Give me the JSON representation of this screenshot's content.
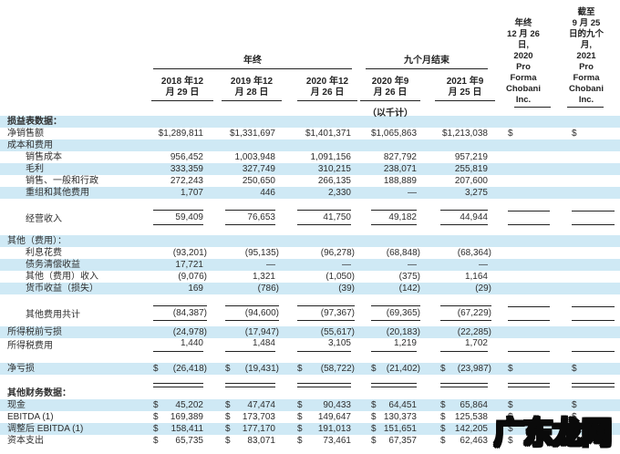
{
  "header": {
    "year_ended_label": "年终",
    "nine_months_label": "九个月结束",
    "thousands_note": "（以千计）",
    "date_columns": [
      "2018 年12\n月 29 日",
      "2019 年12\n月 28 日",
      "2020 年12\n月 26 日",
      "2020 年9\n月 26 日",
      "2021 年9\n月 25 日"
    ],
    "pro_forma_columns": [
      "年终\n12 月 26\n日,\n2020\nPro\nForma\nChobani\nInc.",
      "截至\n9 月 25\n日的九个\n月,\n2021\nPro\nForma\nChobani\nInc."
    ]
  },
  "colors": {
    "stripe": "#cfe9f5",
    "text": "#2e2e2e",
    "rule": "#222222"
  },
  "watermark": "广东龙网",
  "table": {
    "rows": [
      {
        "label": "损益表数据：",
        "bold": true,
        "shaded": true,
        "cells": []
      },
      {
        "label": "净销售额",
        "cells": [
          "$1,289,811",
          "$1,331,697",
          "$1,401,371",
          "$1,065,863",
          "$1,213,038",
          {
            "$": ""
          },
          {
            "$": ""
          }
        ]
      },
      {
        "label": "成本和费用",
        "shaded": true,
        "cells": []
      },
      {
        "label": "销售成本",
        "indent": true,
        "cells": [
          "956,452",
          "1,003,948",
          "1,091,156",
          "827,792",
          "957,219",
          "",
          ""
        ]
      },
      {
        "label": "毛利",
        "indent": true,
        "shaded": true,
        "cells": [
          "333,359",
          "327,749",
          "310,215",
          "238,071",
          "255,819",
          "",
          ""
        ]
      },
      {
        "label": "销售、一般和行政",
        "indent": true,
        "cells": [
          "272,243",
          "250,650",
          "266,135",
          "188,889",
          "207,600",
          "",
          ""
        ]
      },
      {
        "label": "重组和其他费用",
        "indent": true,
        "shaded": true,
        "cells": [
          "1,707",
          "446",
          "2,330",
          "—",
          "3,275",
          "",
          ""
        ]
      },
      {
        "spacer": 12
      },
      {
        "label": "经营收入",
        "indent": true,
        "rule": "overunder",
        "cells": [
          "59,409",
          "76,653",
          "41,750",
          "49,182",
          "44,944",
          "",
          ""
        ]
      },
      {
        "spacer": 11
      },
      {
        "label": "其他（费用）：",
        "shaded": true,
        "cells": []
      },
      {
        "label": "利息花费",
        "indent": true,
        "cells": [
          "(93,201)",
          "(95,135)",
          "(96,278)",
          "(68,848)",
          "(68,364)",
          "",
          ""
        ]
      },
      {
        "label": "债务清偿收益",
        "indent": true,
        "shaded": true,
        "cells": [
          "17,721",
          "—",
          "—",
          "—",
          "—",
          "",
          ""
        ]
      },
      {
        "label": "其他（费用）收入",
        "indent": true,
        "cells": [
          "(9,076)",
          "1,321",
          "(1,050)",
          "(375)",
          "1,164",
          "",
          ""
        ]
      },
      {
        "label": "货币收益（损失）",
        "indent": true,
        "shaded": true,
        "cells": [
          "169",
          "(786)",
          "(39)",
          "(142)",
          "(29)",
          "",
          ""
        ]
      },
      {
        "spacer": 12
      },
      {
        "label": "其他费用共计",
        "indent": true,
        "rule": "overunder",
        "cells": [
          "(84,387)",
          "(94,600)",
          "(97,367)",
          "(69,365)",
          "(67,229)",
          "",
          ""
        ]
      },
      {
        "spacer": 6
      },
      {
        "label": "所得税前亏损",
        "shaded": true,
        "cells": [
          "(24,978)",
          "(17,947)",
          "(55,617)",
          "(20,183)",
          "(22,285)",
          "",
          ""
        ]
      },
      {
        "label": "所得税费用",
        "rule": "under",
        "cells": [
          "1,440",
          "1,484",
          "3,105",
          "1,219",
          "1,702",
          "",
          ""
        ]
      },
      {
        "spacer": 12
      },
      {
        "label": "净亏损",
        "shaded": true,
        "cells": [
          {
            "$": "(26,418)"
          },
          {
            "$": "(19,431)"
          },
          {
            "$": "(58,722)"
          },
          {
            "$": "(21,402)"
          },
          {
            "$": "(23,987)"
          },
          {
            "$": ""
          },
          {
            "$": ""
          }
        ]
      },
      {
        "spacer": 14,
        "rule": "double"
      },
      {
        "label": "其他财务数据：",
        "bold": true,
        "cells": []
      },
      {
        "label": "现金",
        "shaded": true,
        "cells": [
          {
            "$": "45,202"
          },
          {
            "$": "47,474"
          },
          {
            "$": "90,433"
          },
          {
            "$": "64,451"
          },
          {
            "$": "65,864"
          },
          {
            "$": ""
          },
          {
            "$": ""
          }
        ]
      },
      {
        "label": "EBITDA (1)",
        "cells": [
          {
            "$": "169,389"
          },
          {
            "$": "173,703"
          },
          {
            "$": "149,647"
          },
          {
            "$": "130,373"
          },
          {
            "$": "125,538"
          },
          {
            "$": ""
          },
          {
            "$": ""
          }
        ]
      },
      {
        "label": "调整后 EBITDA (1)",
        "shaded": true,
        "cells": [
          {
            "$": "158,411"
          },
          {
            "$": "177,170"
          },
          {
            "$": "191,013"
          },
          {
            "$": "151,651"
          },
          {
            "$": "142,205"
          },
          {
            "$": ""
          },
          {
            "$": ""
          }
        ]
      },
      {
        "label": "资本支出",
        "cells": [
          {
            "$": "65,735"
          },
          {
            "$": "83,071"
          },
          {
            "$": "73,461"
          },
          {
            "$": "67,357"
          },
          {
            "$": "62,463"
          },
          {
            "$": ""
          },
          {
            "$": ""
          }
        ]
      }
    ]
  }
}
